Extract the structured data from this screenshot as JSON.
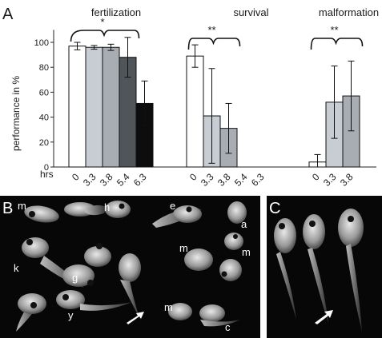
{
  "panels": {
    "a": "A",
    "b": "B",
    "c": "C"
  },
  "chart_data": {
    "type": "bar",
    "ylabel": "performance in  %",
    "xlabel_prefix": "hrs",
    "ylim": [
      0,
      110
    ],
    "yticks": [
      "0",
      "20",
      "40",
      "60",
      "80",
      "100"
    ],
    "ytick_values": [
      0,
      20,
      40,
      60,
      80,
      100
    ],
    "grid": false,
    "colors": {
      "0": "#ffffff",
      "3.3": "#c7cdd2",
      "3.8": "#a7adb2",
      "5.4": "#4f5558",
      "6.3": "#0d0d0d"
    },
    "groups": [
      {
        "title": "fertilization",
        "categories": [
          "0",
          "3.3",
          "3.8",
          "5.4",
          "6.3"
        ],
        "values": [
          97,
          96,
          96,
          88,
          51
        ],
        "error": [
          3,
          1.5,
          2.5,
          16,
          18
        ],
        "significance": [
          {
            "label": "*",
            "from": "0",
            "to": "5.4"
          }
        ]
      },
      {
        "title": "survival",
        "categories": [
          "0",
          "3.3",
          "3.8",
          "5.4",
          "6.3"
        ],
        "values": [
          89,
          41,
          31,
          null,
          null
        ],
        "error": [
          9,
          38,
          20,
          null,
          null
        ],
        "significance": [
          {
            "label": "**",
            "from": "0",
            "to": "3.8"
          }
        ]
      },
      {
        "title": "malformation",
        "categories": [
          "0",
          "3.3",
          "3.8"
        ],
        "values": [
          4,
          52,
          57
        ],
        "error": [
          6,
          29,
          28
        ],
        "significance": [
          {
            "label": "**",
            "from": "0",
            "to": "3.8"
          }
        ]
      }
    ]
  },
  "photo_b": {
    "labels": [
      "m",
      "h",
      "e",
      "a",
      "k",
      "g",
      "m",
      "m",
      "y",
      "m",
      "c"
    ]
  },
  "photo_c": {
    "labels": []
  }
}
